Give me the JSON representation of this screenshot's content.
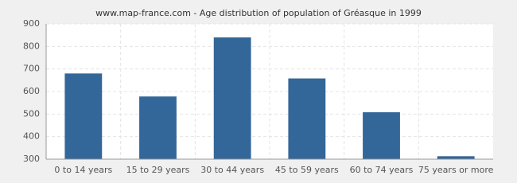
{
  "chart_data": {
    "type": "bar",
    "title": "www.map-france.com - Age distribution of population of Gréasque in 1999",
    "categories": [
      "0 to 14 years",
      "15 to 29 years",
      "30 to 44 years",
      "45 to 59 years",
      "60 to 74 years",
      "75 years or more"
    ],
    "values": [
      680,
      578,
      840,
      658,
      508,
      313
    ],
    "color": "#336699",
    "ylim": [
      300,
      900
    ],
    "yticks": [
      300,
      400,
      500,
      600,
      700,
      800,
      900
    ],
    "grid": true
  }
}
